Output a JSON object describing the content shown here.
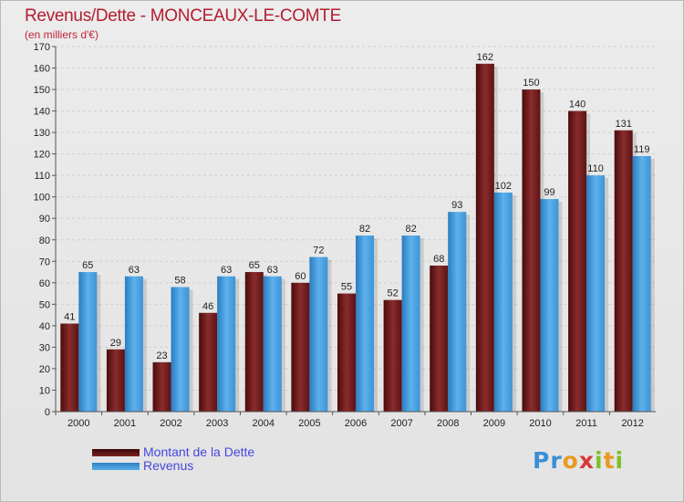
{
  "header": {
    "title": "Revenus/Dette - MONCEAUX-LE-COMTE",
    "subtitle": "(en milliers d'€)"
  },
  "legend": {
    "debt_label": "Montant de la Dette",
    "revenue_label": "Revenus"
  },
  "logo": {
    "text": "Proxiti"
  },
  "colors": {
    "debt": "#7a2323",
    "revenue": "#4aa3e6",
    "title": "#b31d31",
    "legend_text": "#4747e0"
  },
  "chart_data": {
    "type": "bar",
    "categories": [
      "2000",
      "2001",
      "2002",
      "2003",
      "2004",
      "2005",
      "2006",
      "2007",
      "2008",
      "2009",
      "2010",
      "2011",
      "2012"
    ],
    "series": [
      {
        "name": "Montant de la Dette",
        "values": [
          41,
          29,
          23,
          46,
          65,
          60,
          55,
          52,
          68,
          162,
          150,
          140,
          131
        ]
      },
      {
        "name": "Revenus",
        "values": [
          65,
          63,
          58,
          63,
          63,
          72,
          82,
          82,
          93,
          102,
          99,
          110,
          119
        ]
      }
    ],
    "title": "Revenus/Dette - MONCEAUX-LE-COMTE",
    "ylabel": "(en milliers d'€)",
    "ylim": [
      0,
      170
    ],
    "yticks": [
      0,
      10,
      20,
      30,
      40,
      50,
      60,
      70,
      80,
      90,
      100,
      110,
      120,
      130,
      140,
      150,
      160,
      170
    ],
    "grid": true,
    "legend_position": "bottom-left"
  }
}
